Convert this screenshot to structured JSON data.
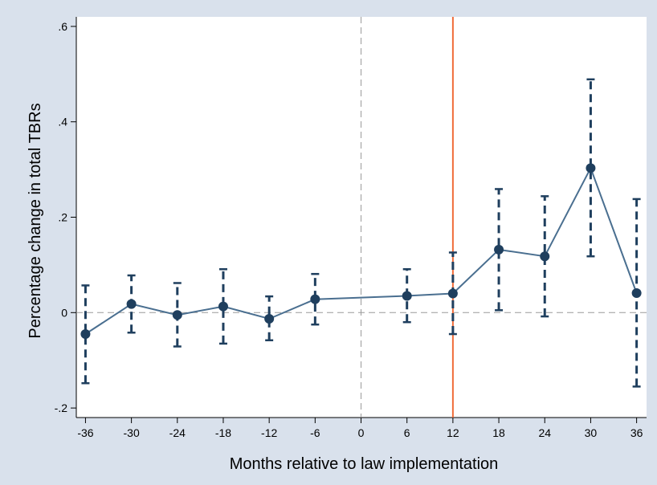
{
  "chart_data": {
    "type": "line",
    "xlabel": "Months relative to law implementation",
    "ylabel": "Percentage change in total TBRs",
    "x_ticks": [
      -36,
      -30,
      -24,
      -18,
      -12,
      -6,
      0,
      6,
      12,
      18,
      24,
      30,
      36
    ],
    "x_tick_labels": [
      "-36",
      "-30",
      "-24",
      "-18",
      "-12",
      "-6",
      "0",
      "6",
      "12",
      "18",
      "24",
      "30",
      "36"
    ],
    "y_ticks": [
      -0.2,
      0,
      0.2,
      0.4,
      0.6
    ],
    "y_tick_labels": [
      "-.2",
      "0",
      ".2",
      ".4",
      ".6"
    ],
    "xlim": [
      -37.2,
      37.3
    ],
    "ylim": [
      -0.22,
      0.62
    ],
    "grid": false,
    "reference_lines": [
      {
        "orientation": "vertical",
        "value": 0,
        "style": "dashed",
        "color": "#9a9a9a"
      },
      {
        "orientation": "horizontal",
        "value": 0,
        "style": "dashed",
        "color": "#9a9a9a"
      },
      {
        "orientation": "vertical",
        "value": 12,
        "style": "solid",
        "color": "#f06c3a"
      }
    ],
    "series": [
      {
        "x": [
          -36,
          -30,
          -24,
          -18,
          -12,
          -6,
          6,
          12,
          18,
          24,
          30,
          36
        ],
        "y": [
          -0.045,
          0.018,
          -0.005,
          0.013,
          -0.013,
          0.028,
          0.035,
          0.04,
          0.132,
          0.118,
          0.303,
          0.041
        ],
        "ci_low": [
          -0.148,
          -0.042,
          -0.071,
          -0.065,
          -0.058,
          -0.025,
          -0.02,
          -0.045,
          0.005,
          -0.008,
          0.118,
          -0.155
        ],
        "ci_high": [
          0.057,
          0.078,
          0.062,
          0.091,
          0.034,
          0.081,
          0.091,
          0.126,
          0.259,
          0.244,
          0.489,
          0.238
        ],
        "color": "#1f3f5e",
        "line_color": "#4a6f90"
      }
    ]
  }
}
